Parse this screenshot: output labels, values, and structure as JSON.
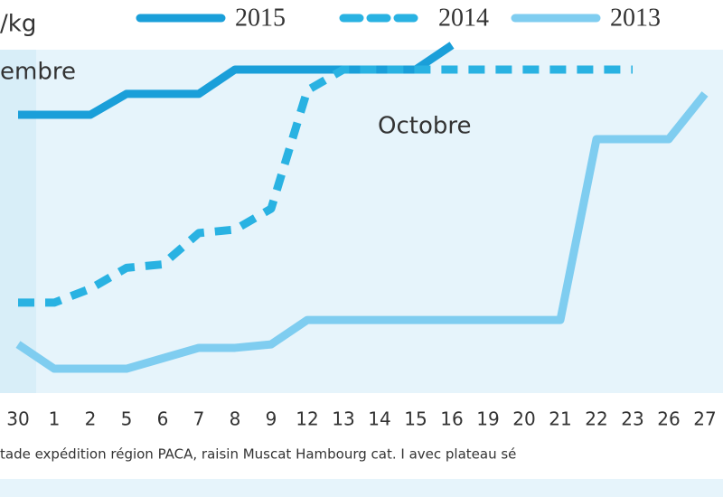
{
  "chart_data": {
    "type": "line",
    "ylabel": "/kg",
    "annotations": [
      "embre",
      "Octobre"
    ],
    "footnote": "tade expédition région PACA, raisin Muscat Hambourg cat. I avec plateau sé",
    "categories": [
      "30",
      "1",
      "2",
      "5",
      "6",
      "7",
      "8",
      "9",
      "12",
      "13",
      "14",
      "15",
      "16",
      "19",
      "20",
      "21",
      "22",
      "23",
      "26",
      "27"
    ],
    "ylim": [
      0,
      100
    ],
    "series": [
      {
        "name": "2015",
        "color": "#1a9fd9",
        "dash": false,
        "values": [
          80,
          80,
          80,
          86,
          86,
          86,
          93,
          93,
          93,
          93,
          93,
          93,
          100,
          null,
          null,
          null,
          null,
          null,
          null,
          null
        ]
      },
      {
        "name": "2014",
        "color": "#29b2e2",
        "dash": true,
        "values": [
          26,
          26,
          30,
          36,
          37,
          46,
          47,
          53,
          87,
          93,
          93,
          93,
          93,
          93,
          93,
          93,
          93,
          93,
          null,
          null
        ]
      },
      {
        "name": "2013",
        "color": "#7fcdf0",
        "dash": false,
        "values": [
          14,
          7,
          7,
          7,
          10,
          13,
          13,
          14,
          21,
          21,
          21,
          21,
          21,
          21,
          21,
          21,
          73,
          73,
          73,
          86
        ]
      }
    ]
  }
}
